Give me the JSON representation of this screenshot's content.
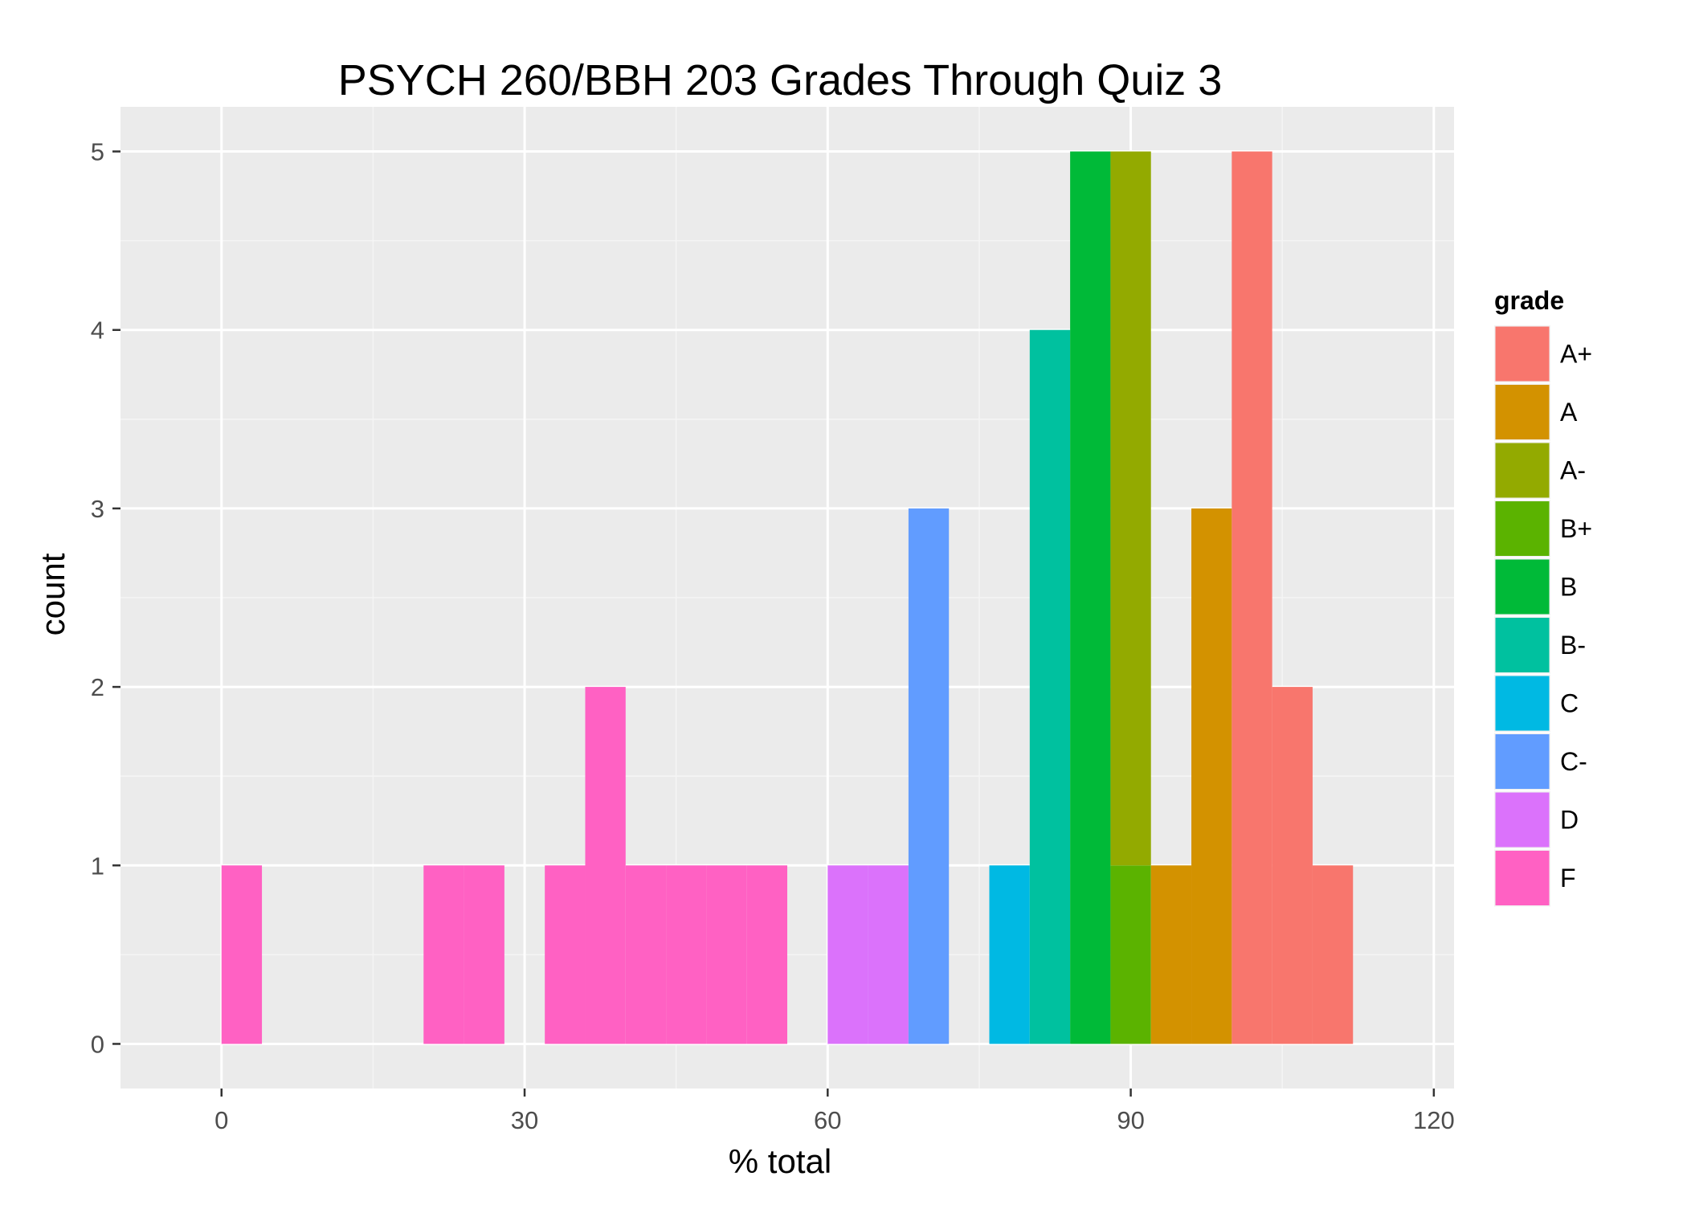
{
  "chart_data": {
    "type": "bar",
    "title": "PSYCH 260/BBH 203 Grades Through Quiz 3",
    "xlabel": "% total",
    "ylabel": "count",
    "xlim": [
      -10,
      122
    ],
    "ylim": [
      -0.25,
      5.25
    ],
    "x_ticks": [
      0,
      30,
      60,
      90,
      120
    ],
    "x_tick_labels": [
      "0",
      "30",
      "60",
      "90",
      "120"
    ],
    "y_ticks": [
      0,
      1,
      2,
      3,
      4,
      5
    ],
    "y_tick_labels": [
      "0",
      "1",
      "2",
      "3",
      "4",
      "5"
    ],
    "bin_width": 4,
    "grid": true,
    "stacked": true,
    "legend_title": "grade",
    "legend_position": "right",
    "series": [
      {
        "name": "A+",
        "color": "#F8766D",
        "bins": [
          {
            "x0": 100,
            "count": 5
          },
          {
            "x0": 104,
            "count": 2
          },
          {
            "x0": 108,
            "count": 1
          }
        ]
      },
      {
        "name": "A",
        "color": "#D39200",
        "bins": [
          {
            "x0": 92,
            "count": 1
          },
          {
            "x0": 96,
            "count": 3
          }
        ]
      },
      {
        "name": "A-",
        "color": "#93AA00",
        "bins": [
          {
            "x0": 88,
            "count": 4
          }
        ]
      },
      {
        "name": "B+",
        "color": "#5BB300",
        "bins": [
          {
            "x0": 88,
            "count": 1
          }
        ]
      },
      {
        "name": "B",
        "color": "#00BA38",
        "bins": [
          {
            "x0": 84,
            "count": 5
          }
        ]
      },
      {
        "name": "B-",
        "color": "#00C19F",
        "bins": [
          {
            "x0": 80,
            "count": 4
          }
        ]
      },
      {
        "name": "C",
        "color": "#00B9E3",
        "bins": [
          {
            "x0": 76,
            "count": 1
          }
        ]
      },
      {
        "name": "C-",
        "color": "#619CFF",
        "bins": [
          {
            "x0": 68,
            "count": 3
          }
        ]
      },
      {
        "name": "D",
        "color": "#DB72FB",
        "bins": [
          {
            "x0": 60,
            "count": 1
          },
          {
            "x0": 64,
            "count": 1
          }
        ]
      },
      {
        "name": "F",
        "color": "#FF61C3",
        "bins": [
          {
            "x0": 0,
            "count": 1
          },
          {
            "x0": 20,
            "count": 1
          },
          {
            "x0": 24,
            "count": 1
          },
          {
            "x0": 32,
            "count": 1
          },
          {
            "x0": 36,
            "count": 2
          },
          {
            "x0": 40,
            "count": 1
          },
          {
            "x0": 44,
            "count": 1
          },
          {
            "x0": 48,
            "count": 1
          },
          {
            "x0": 52,
            "count": 1
          }
        ]
      }
    ]
  }
}
